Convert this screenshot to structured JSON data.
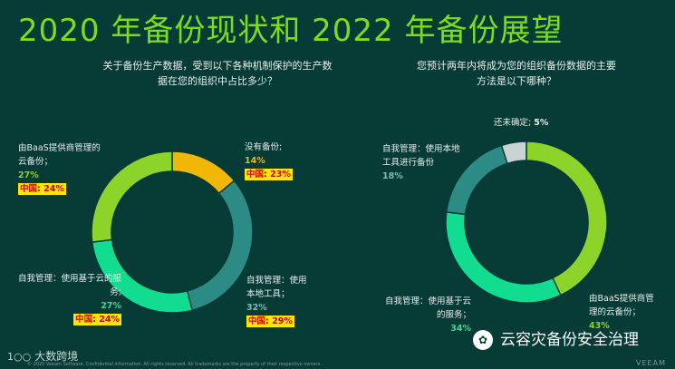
{
  "title": "2020 年备份现状和 2022 年备份展望",
  "chart_data": [
    {
      "type": "pie",
      "title": "关于备份生产数据，受到以下各种机制保护的生产数据在您的组织中占比多少？",
      "categories": [
        "没有备份;",
        "自我管理：使用本地工具；",
        "自我管理：使用基于云的服务;",
        "由BaaS提供商管理的云备份；"
      ],
      "values": [
        14,
        32,
        27,
        27
      ],
      "value_labels": [
        "14%",
        "32%",
        "27%",
        "27%"
      ],
      "china_labels": [
        "中国: 23%",
        "中国: 29%",
        "中国: 24%",
        "中国: 24%"
      ],
      "colors": [
        "#f2b705",
        "#2c8c85",
        "#11dc8f",
        "#8dd42a"
      ]
    },
    {
      "type": "pie",
      "title": "您预计两年内将成为您的组织备份数据的主要方法是以下哪种？",
      "categories": [
        "由BaaS提供商管理的云备份；",
        "自我管理：使用基于云的服务；",
        "自我管理：使用本地工具进行备份",
        "还未确定;"
      ],
      "values": [
        43,
        34,
        18,
        5
      ],
      "value_labels": [
        "43%",
        "34%",
        "18%",
        "5%"
      ],
      "colors": [
        "#8dd42a",
        "#11dc8f",
        "#2c8c85",
        "#c9d3d1"
      ]
    }
  ],
  "brand_left": {
    "logo": "1○○",
    "text": "大数跨境"
  },
  "brand_right": {
    "icon": "wechat-icon",
    "text": "云容灾备份安全治理"
  },
  "footer": "© 2020 Veeam Software. Confidential information. All rights reserved. All trademarks are the property of their respective owners.",
  "veeam": "VEEAM"
}
